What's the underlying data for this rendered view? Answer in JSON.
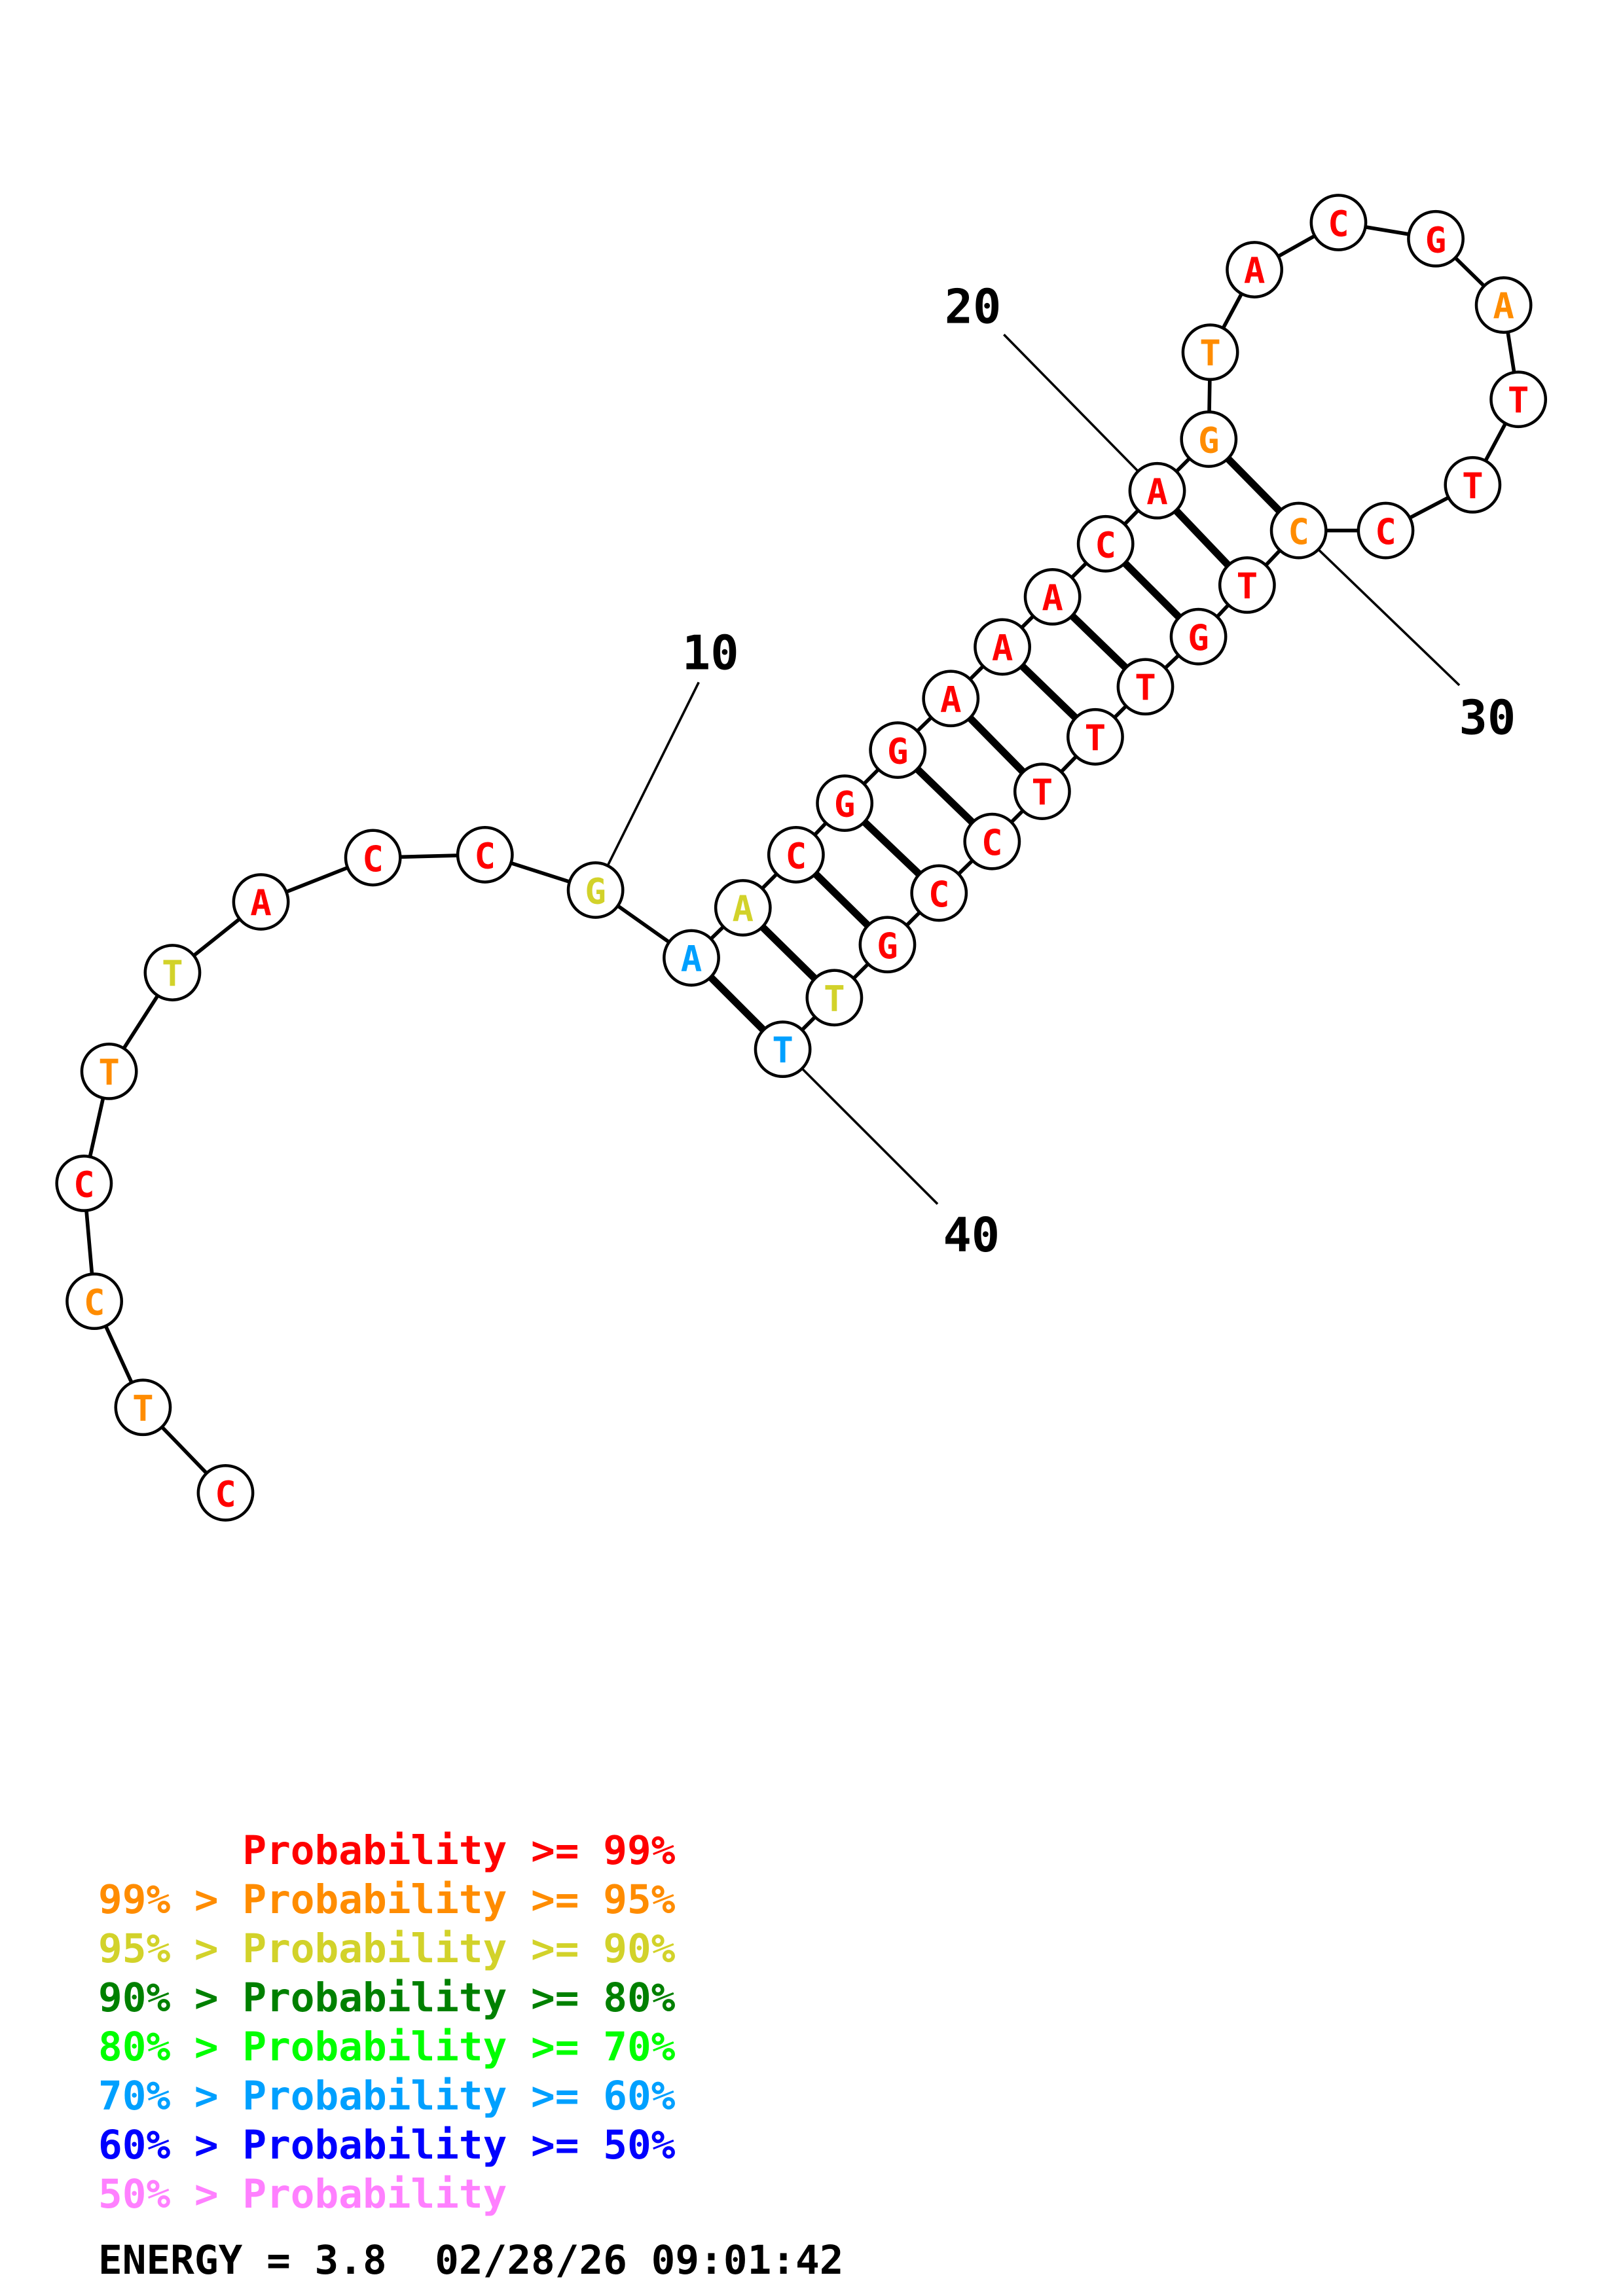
{
  "colors": {
    "p99": "#ff0000",
    "p95": "#ff8c00",
    "p90": "#d2d22a",
    "p80": "#008000",
    "p70": "#00ff00",
    "p60": "#00a0ff",
    "p50": "#0000ff",
    "plow": "#ff80ff"
  },
  "sequence": [
    {
      "base": "C",
      "cls": "p99"
    },
    {
      "base": "T",
      "cls": "p95"
    },
    {
      "base": "C",
      "cls": "p95"
    },
    {
      "base": "C",
      "cls": "p99"
    },
    {
      "base": "T",
      "cls": "p95"
    },
    {
      "base": "T",
      "cls": "p90"
    },
    {
      "base": "A",
      "cls": "p99"
    },
    {
      "base": "C",
      "cls": "p99"
    },
    {
      "base": "C",
      "cls": "p99"
    },
    {
      "base": "G",
      "cls": "p90"
    },
    {
      "base": "A",
      "cls": "p60"
    },
    {
      "base": "A",
      "cls": "p90"
    },
    {
      "base": "C",
      "cls": "p99"
    },
    {
      "base": "G",
      "cls": "p99"
    },
    {
      "base": "G",
      "cls": "p99"
    },
    {
      "base": "A",
      "cls": "p99"
    },
    {
      "base": "A",
      "cls": "p99"
    },
    {
      "base": "A",
      "cls": "p99"
    },
    {
      "base": "C",
      "cls": "p99"
    },
    {
      "base": "A",
      "cls": "p99"
    },
    {
      "base": "G",
      "cls": "p95"
    },
    {
      "base": "T",
      "cls": "p95"
    },
    {
      "base": "A",
      "cls": "p99"
    },
    {
      "base": "C",
      "cls": "p99"
    },
    {
      "base": "G",
      "cls": "p99"
    },
    {
      "base": "A",
      "cls": "p95"
    },
    {
      "base": "T",
      "cls": "p99"
    },
    {
      "base": "T",
      "cls": "p99"
    },
    {
      "base": "C",
      "cls": "p99"
    },
    {
      "base": "C",
      "cls": "p95"
    },
    {
      "base": "T",
      "cls": "p99"
    },
    {
      "base": "G",
      "cls": "p99"
    },
    {
      "base": "T",
      "cls": "p99"
    },
    {
      "base": "T",
      "cls": "p99"
    },
    {
      "base": "T",
      "cls": "p99"
    },
    {
      "base": "C",
      "cls": "p99"
    },
    {
      "base": "C",
      "cls": "p99"
    },
    {
      "base": "G",
      "cls": "p99"
    },
    {
      "base": "T",
      "cls": "p90"
    },
    {
      "base": "T",
      "cls": "p60"
    }
  ],
  "pairs": [
    [
      11,
      40
    ],
    [
      12,
      39
    ],
    [
      13,
      38
    ],
    [
      14,
      37
    ],
    [
      15,
      36
    ],
    [
      16,
      35
    ],
    [
      17,
      34
    ],
    [
      18,
      33
    ],
    [
      19,
      32
    ],
    [
      20,
      31
    ],
    [
      21,
      30
    ]
  ],
  "position_labels": [
    {
      "index": 10,
      "text": "10"
    },
    {
      "index": 20,
      "text": "20"
    },
    {
      "index": 30,
      "text": "30"
    },
    {
      "index": 40,
      "text": "40"
    }
  ],
  "legend": [
    {
      "prefix": "     ",
      "label": "Probability >= 99%",
      "cls": "p99"
    },
    {
      "prefix": "99% > ",
      "label": "Probability >= 95%",
      "cls": "p95"
    },
    {
      "prefix": "95% > ",
      "label": "Probability >= 90%",
      "cls": "p90"
    },
    {
      "prefix": "90% > ",
      "label": "Probability >= 80%",
      "cls": "p80"
    },
    {
      "prefix": "80% > ",
      "label": "Probability >= 70%",
      "cls": "p70"
    },
    {
      "prefix": "70% > ",
      "label": "Probability >= 60%",
      "cls": "p60"
    },
    {
      "prefix": "60% > ",
      "label": "Probability >= 50%",
      "cls": "p50"
    },
    {
      "prefix": "50% > ",
      "label": "Probability",
      "cls": "plow"
    }
  ],
  "energy_line": "ENERGY = 3.8  02/28/26 09:01:42"
}
